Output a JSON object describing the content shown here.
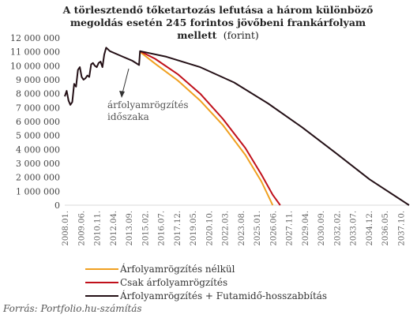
{
  "chart_data": {
    "type": "line",
    "title_lines": [
      "A törlesztendő tőketartozás lefutása a három különböző",
      "megoldás esetén 245 forintos jövőbeni frankárfolyam",
      "mellett"
    ],
    "title_unit": "(forint)",
    "y_ticks": [
      "12 000 000",
      "11 000 000",
      "10 000 000",
      "9 000 000",
      "8 000 000",
      "7 000 000",
      "6 000 000",
      "5 000 000",
      "4 000 000",
      "3 000 000",
      "2 000 000",
      "1 000 000",
      "0"
    ],
    "ylim": [
      0,
      12000000
    ],
    "x_ticks": [
      "2008.01.",
      "2009.06.",
      "2010.11.",
      "2012.04.",
      "2013.09.",
      "2015.02.",
      "2016.07.",
      "2017.12.",
      "2019.05.",
      "2020.10.",
      "2022.03.",
      "2023.08.",
      "2025.01.",
      "2026.06.",
      "2027.11.",
      "2029.04.",
      "2030.09.",
      "2032.02.",
      "2033.07.",
      "2034.12.",
      "2036.05.",
      "2037.10."
    ],
    "xlim": [
      "2008.01.",
      "2038.07."
    ],
    "annotation": [
      "árfolyamrögzítés",
      "időszaka"
    ],
    "series": [
      {
        "name": "Árfolyamrögzítés nélkül",
        "color": "#f0a020",
        "points": [
          [
            "2014.09.",
            11000000
          ],
          [
            "2016.01.",
            10150000
          ],
          [
            "2018.01.",
            8950000
          ],
          [
            "2020.01.",
            7500000
          ],
          [
            "2022.01.",
            5750000
          ],
          [
            "2024.01.",
            3600000
          ],
          [
            "2025.06.",
            1700000
          ],
          [
            "2026.06.",
            0
          ]
        ]
      },
      {
        "name": "Csak árfolyamrögzítés",
        "color": "#c0101a",
        "points": [
          [
            "2014.09.",
            11050000
          ],
          [
            "2016.01.",
            10500000
          ],
          [
            "2018.01.",
            9400000
          ],
          [
            "2020.01.",
            8000000
          ],
          [
            "2022.01.",
            6200000
          ],
          [
            "2024.01.",
            4100000
          ],
          [
            "2025.06.",
            2200000
          ],
          [
            "2026.06.",
            750000
          ],
          [
            "2027.02.",
            0
          ]
        ]
      },
      {
        "name": "Árfolyamrögzítés + Futamidő-hosszabbítás",
        "color": "#241016",
        "points": [
          [
            "2008.01.",
            7800000
          ],
          [
            "2008.03.",
            8200000
          ],
          [
            "2008.05.",
            7500000
          ],
          [
            "2008.07.",
            7200000
          ],
          [
            "2008.09.",
            7400000
          ],
          [
            "2008.11.",
            8700000
          ],
          [
            "2009.01.",
            8500000
          ],
          [
            "2009.03.",
            9700000
          ],
          [
            "2009.05.",
            9900000
          ],
          [
            "2009.07.",
            9200000
          ],
          [
            "2009.09.",
            9000000
          ],
          [
            "2009.11.",
            9100000
          ],
          [
            "2010.01.",
            9300000
          ],
          [
            "2010.03.",
            9200000
          ],
          [
            "2010.05.",
            10100000
          ],
          [
            "2010.07.",
            10200000
          ],
          [
            "2010.09.",
            10000000
          ],
          [
            "2010.11.",
            9900000
          ],
          [
            "2011.01.",
            10200000
          ],
          [
            "2011.03.",
            10300000
          ],
          [
            "2011.05.",
            9900000
          ],
          [
            "2011.07.",
            10800000
          ],
          [
            "2011.09.",
            11300000
          ],
          [
            "2012.01.",
            11050000
          ],
          [
            "2013.01.",
            10700000
          ],
          [
            "2014.01.",
            10350000
          ],
          [
            "2014.08.",
            10050000
          ],
          [
            "2014.09.",
            11050000
          ],
          [
            "2017.01.",
            10650000
          ],
          [
            "2020.01.",
            9900000
          ],
          [
            "2023.01.",
            8800000
          ],
          [
            "2026.01.",
            7300000
          ],
          [
            "2029.01.",
            5600000
          ],
          [
            "2032.01.",
            3750000
          ],
          [
            "2035.01.",
            1850000
          ],
          [
            "2038.07.",
            0
          ]
        ]
      }
    ]
  },
  "source": "Forrás: Portfolio.hu-számítás"
}
